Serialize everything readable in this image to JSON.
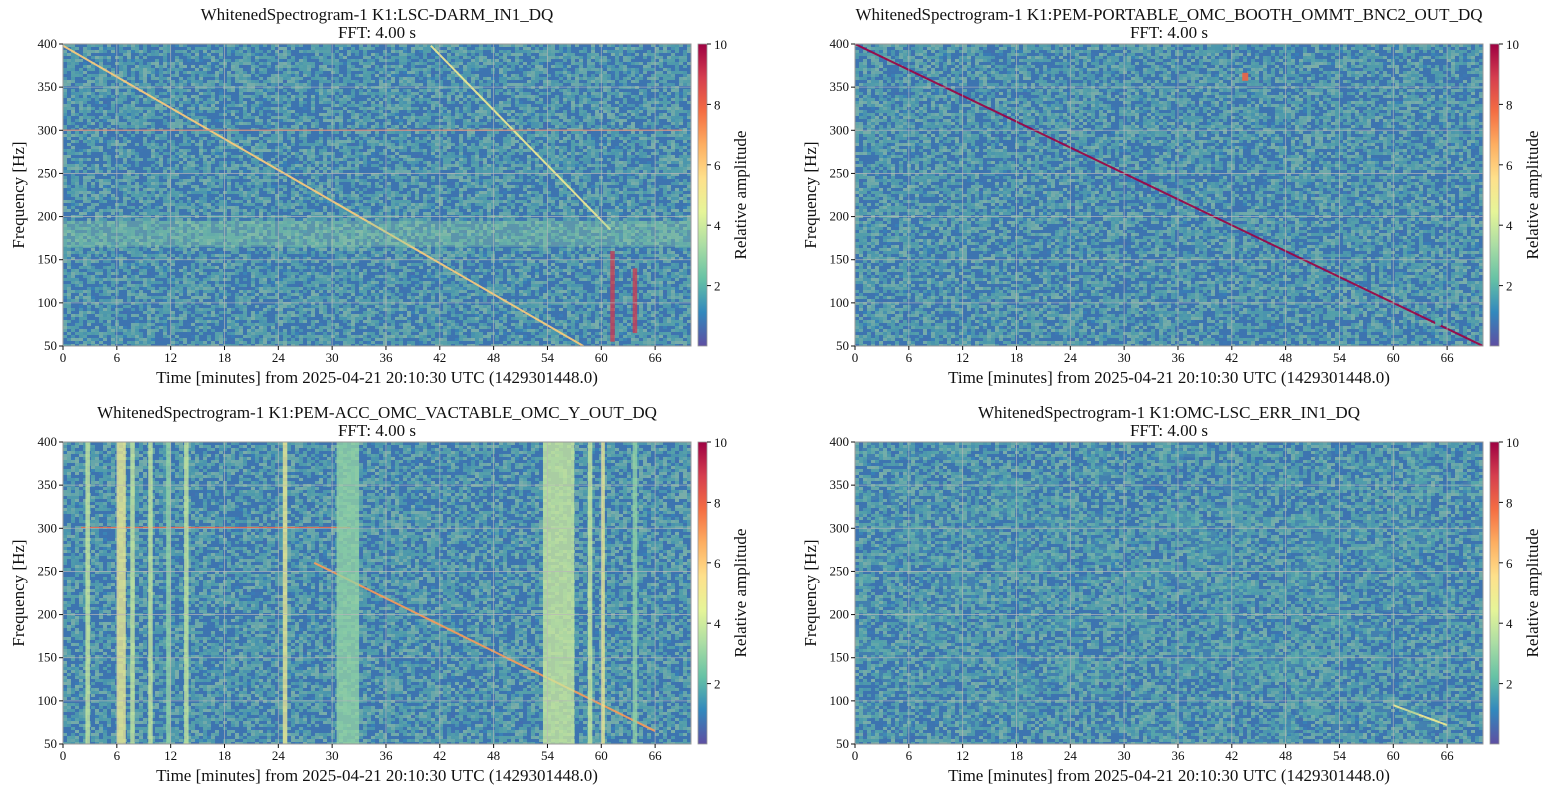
{
  "colors": {
    "background": "#3d74b0",
    "grid": "#b8b8b8",
    "colormap": [
      "#5e4fa2",
      "#3288bd",
      "#66c2a5",
      "#abdda4",
      "#e6f598",
      "#fee08b",
      "#fdae61",
      "#f46d43",
      "#d53e4f",
      "#9e0142"
    ]
  },
  "chart_data": [
    {
      "type": "heatmap",
      "title": "WhitenedSpectrogram-1 K1:LSC-DARM_IN1_DQ",
      "subtitle": "FFT: 4.00 s",
      "xlabel": "Time [minutes] from 2025-04-21 20:10:30 UTC (1429301448.0)",
      "ylabel": "Frequency [Hz]",
      "colorbar_label": "Relative amplitude",
      "xlim": [
        0,
        70
      ],
      "ylim": [
        50,
        400
      ],
      "clim": [
        0,
        10
      ],
      "x_ticks": [
        0,
        6,
        12,
        18,
        24,
        30,
        36,
        42,
        48,
        54,
        60,
        66
      ],
      "y_ticks": [
        50,
        100,
        150,
        200,
        250,
        300,
        350,
        400
      ],
      "colorbar_ticks": [
        2,
        4,
        6,
        8,
        10
      ],
      "grid": true,
      "features": [
        {
          "kind": "line",
          "t": [
            0,
            58
          ],
          "f": [
            398,
            50
          ],
          "level": 6
        },
        {
          "kind": "line",
          "t": [
            41,
            61
          ],
          "f": [
            398,
            185
          ],
          "level": 5
        },
        {
          "kind": "band",
          "f": [
            165,
            195
          ],
          "level": 3
        },
        {
          "kind": "line",
          "t": [
            0,
            69
          ],
          "f": [
            300,
            300
          ],
          "level": 8
        },
        {
          "kind": "vline",
          "t": [
            61,
            61.5
          ],
          "f": [
            55,
            160
          ],
          "level": 9
        },
        {
          "kind": "vline",
          "t": [
            63.5,
            64
          ],
          "f": [
            65,
            140
          ],
          "level": 9
        }
      ]
    },
    {
      "type": "heatmap",
      "title": "WhitenedSpectrogram-1 K1:PEM-PORTABLE_OMC_BOOTH_OMMT_BNC2_OUT_DQ",
      "subtitle": "FFT: 4.00 s",
      "xlabel": "Time [minutes] from 2025-04-21 20:10:30 UTC (1429301448.0)",
      "ylabel": "Frequency [Hz]",
      "colorbar_label": "Relative amplitude",
      "xlim": [
        0,
        70
      ],
      "ylim": [
        50,
        400
      ],
      "clim": [
        0,
        10
      ],
      "x_ticks": [
        0,
        6,
        12,
        18,
        24,
        30,
        36,
        42,
        48,
        54,
        60,
        66
      ],
      "y_ticks": [
        50,
        100,
        150,
        200,
        250,
        300,
        350,
        400
      ],
      "colorbar_ticks": [
        2,
        4,
        6,
        8,
        10
      ],
      "grid": true,
      "features": [
        {
          "kind": "line",
          "t": [
            0,
            70
          ],
          "f": [
            400,
            50
          ],
          "level": 10
        },
        {
          "kind": "spot",
          "t": 43.5,
          "f": 362,
          "level": 8
        },
        {
          "kind": "spot",
          "t": 65,
          "f": 78,
          "level": 2
        }
      ]
    },
    {
      "type": "heatmap",
      "title": "WhitenedSpectrogram-1 K1:PEM-ACC_OMC_VACTABLE_OMC_Y_OUT_DQ",
      "subtitle": "FFT: 4.00 s",
      "xlabel": "Time [minutes] from 2025-04-21 20:10:30 UTC (1429301448.0)",
      "ylabel": "Frequency [Hz]",
      "colorbar_label": "Relative amplitude",
      "xlim": [
        0,
        70
      ],
      "ylim": [
        50,
        400
      ],
      "clim": [
        0,
        10
      ],
      "x_ticks": [
        0,
        6,
        12,
        18,
        24,
        30,
        36,
        42,
        48,
        54,
        60,
        66
      ],
      "y_ticks": [
        50,
        100,
        150,
        200,
        250,
        300,
        350,
        400
      ],
      "colorbar_ticks": [
        2,
        4,
        6,
        8,
        10
      ],
      "grid": true,
      "features": [
        {
          "kind": "line",
          "t": [
            28,
            66
          ],
          "f": [
            260,
            65
          ],
          "level": 7
        },
        {
          "kind": "line",
          "t": [
            2,
            32
          ],
          "f": [
            301,
            301
          ],
          "level": 8
        },
        {
          "kind": "vline",
          "t": [
            2.5,
            3
          ],
          "f": [
            50,
            400
          ],
          "level": 4
        },
        {
          "kind": "vline",
          "t": [
            6,
            7
          ],
          "f": [
            50,
            400
          ],
          "level": 5
        },
        {
          "kind": "vline",
          "t": [
            7.5,
            8
          ],
          "f": [
            50,
            400
          ],
          "level": 4
        },
        {
          "kind": "vline",
          "t": [
            9.5,
            10
          ],
          "f": [
            50,
            400
          ],
          "level": 4
        },
        {
          "kind": "vline",
          "t": [
            11.5,
            12
          ],
          "f": [
            50,
            400
          ],
          "level": 3
        },
        {
          "kind": "vline",
          "t": [
            13.5,
            14
          ],
          "f": [
            50,
            400
          ],
          "level": 4
        },
        {
          "kind": "vline",
          "t": [
            24.5,
            25
          ],
          "f": [
            50,
            400
          ],
          "level": 5
        },
        {
          "kind": "vline",
          "t": [
            30.5,
            33
          ],
          "f": [
            50,
            400
          ],
          "level": 3
        },
        {
          "kind": "vline",
          "t": [
            53.5,
            57
          ],
          "f": [
            50,
            400
          ],
          "level": 4
        },
        {
          "kind": "vline",
          "t": [
            58.5,
            59
          ],
          "f": [
            50,
            400
          ],
          "level": 4
        },
        {
          "kind": "vline",
          "t": [
            60,
            60.4
          ],
          "f": [
            50,
            400
          ],
          "level": 5
        },
        {
          "kind": "vline",
          "t": [
            63.5,
            64
          ],
          "f": [
            50,
            400
          ],
          "level": 3
        }
      ]
    },
    {
      "type": "heatmap",
      "title": "WhitenedSpectrogram-1 K1:OMC-LSC_ERR_IN1_DQ",
      "subtitle": "FFT: 4.00 s",
      "xlabel": "Time [minutes] from 2025-04-21 20:10:30 UTC (1429301448.0)",
      "ylabel": "Frequency [Hz]",
      "colorbar_label": "Relative amplitude",
      "xlim": [
        0,
        70
      ],
      "ylim": [
        50,
        400
      ],
      "clim": [
        0,
        10
      ],
      "x_ticks": [
        0,
        6,
        12,
        18,
        24,
        30,
        36,
        42,
        48,
        54,
        60,
        66
      ],
      "y_ticks": [
        50,
        100,
        150,
        200,
        250,
        300,
        350,
        400
      ],
      "colorbar_ticks": [
        2,
        4,
        6,
        8,
        10
      ],
      "grid": true,
      "features": [
        {
          "kind": "line",
          "t": [
            60,
            66
          ],
          "f": [
            95,
            72
          ],
          "level": 5
        },
        {
          "kind": "haze",
          "level": 2
        }
      ]
    }
  ]
}
